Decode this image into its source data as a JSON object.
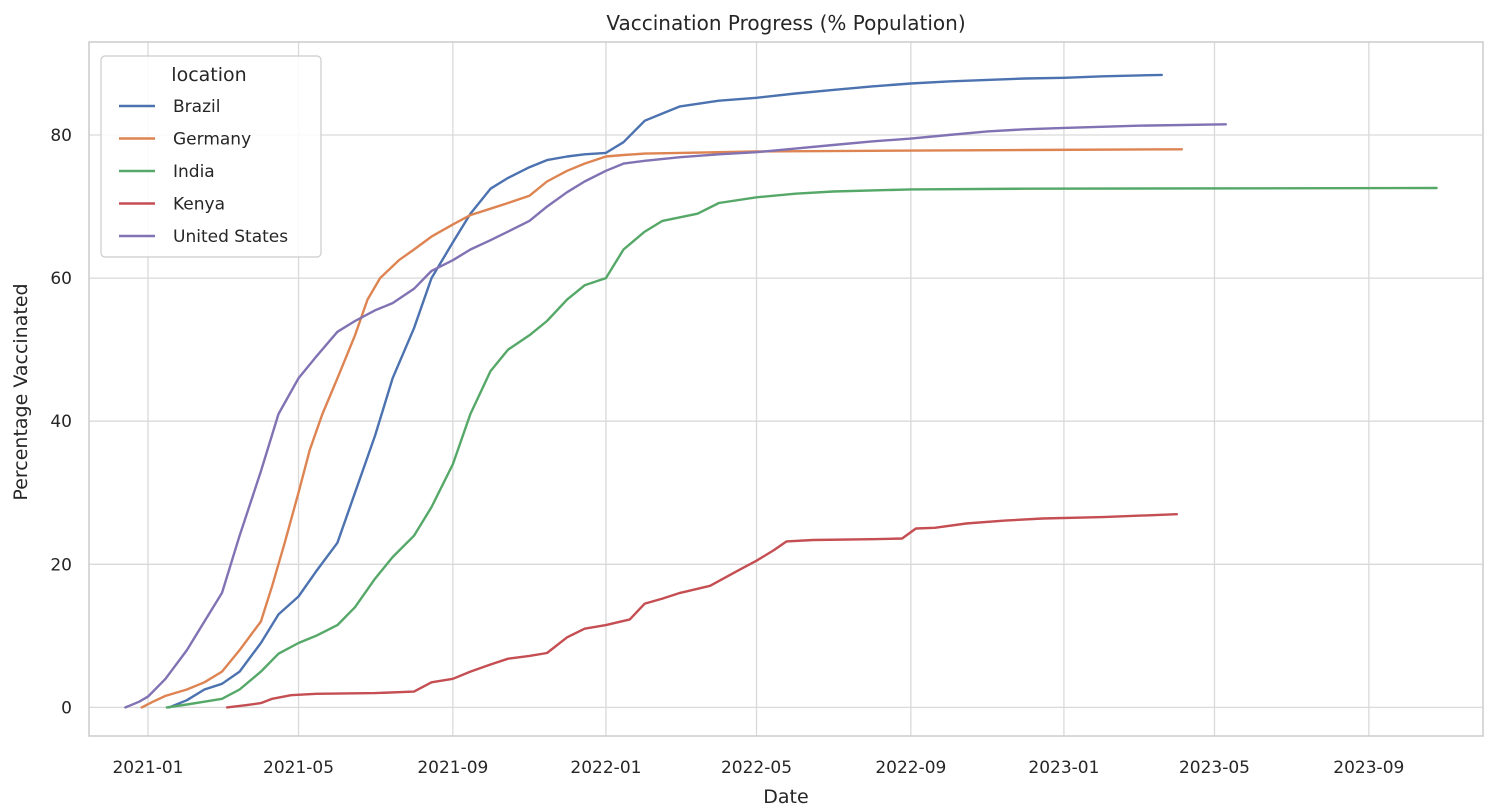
{
  "chart_data": {
    "type": "line",
    "title": "Vaccination Progress (% Population)",
    "xlabel": "Date",
    "ylabel": "Percentage Vaccinated",
    "x_ticks": [
      "2021-01",
      "2021-05",
      "2021-09",
      "2022-01",
      "2022-05",
      "2022-09",
      "2023-01",
      "2023-05",
      "2023-09"
    ],
    "y_ticks": [
      0,
      20,
      40,
      60,
      80
    ],
    "xlim": [
      "2020-11-15",
      "2023-12-01"
    ],
    "ylim": [
      -4,
      93
    ],
    "grid": true,
    "legend": {
      "title": "location",
      "placement": "top-left"
    },
    "series": [
      {
        "name": "Brazil",
        "color": "#4c72b0",
        "points": [
          [
            "2021-01-18",
            0
          ],
          [
            "2021-02-01",
            1
          ],
          [
            "2021-02-15",
            2.5
          ],
          [
            "2021-03-01",
            3.3
          ],
          [
            "2021-03-15",
            5
          ],
          [
            "2021-04-01",
            9
          ],
          [
            "2021-04-15",
            13
          ],
          [
            "2021-05-01",
            15.5
          ],
          [
            "2021-05-15",
            19
          ],
          [
            "2021-06-01",
            23
          ],
          [
            "2021-06-15",
            30
          ],
          [
            "2021-07-01",
            38
          ],
          [
            "2021-07-15",
            46
          ],
          [
            "2021-08-01",
            53
          ],
          [
            "2021-08-15",
            60
          ],
          [
            "2021-09-01",
            65
          ],
          [
            "2021-09-15",
            69
          ],
          [
            "2021-10-01",
            72.5
          ],
          [
            "2021-10-15",
            74
          ],
          [
            "2021-11-01",
            75.5
          ],
          [
            "2021-11-15",
            76.5
          ],
          [
            "2021-12-01",
            77
          ],
          [
            "2021-12-15",
            77.3
          ],
          [
            "2022-01-01",
            77.5
          ],
          [
            "2022-01-15",
            79
          ],
          [
            "2022-02-01",
            82
          ],
          [
            "2022-02-15",
            83
          ],
          [
            "2022-03-01",
            84
          ],
          [
            "2022-04-01",
            84.8
          ],
          [
            "2022-05-01",
            85.2
          ],
          [
            "2022-06-01",
            85.8
          ],
          [
            "2022-07-01",
            86.3
          ],
          [
            "2022-08-01",
            86.8
          ],
          [
            "2022-09-01",
            87.2
          ],
          [
            "2022-10-01",
            87.5
          ],
          [
            "2022-11-01",
            87.7
          ],
          [
            "2022-12-01",
            87.9
          ],
          [
            "2023-01-01",
            88
          ],
          [
            "2023-02-01",
            88.2
          ],
          [
            "2023-03-20",
            88.4
          ]
        ]
      },
      {
        "name": "Germany",
        "color": "#dd8452",
        "points": [
          [
            "2020-12-27",
            0
          ],
          [
            "2021-01-05",
            0.8
          ],
          [
            "2021-01-15",
            1.6
          ],
          [
            "2021-02-01",
            2.5
          ],
          [
            "2021-02-15",
            3.5
          ],
          [
            "2021-03-01",
            5
          ],
          [
            "2021-03-15",
            8
          ],
          [
            "2021-04-01",
            12
          ],
          [
            "2021-04-10",
            17
          ],
          [
            "2021-04-20",
            23
          ],
          [
            "2021-05-01",
            30
          ],
          [
            "2021-05-10",
            36
          ],
          [
            "2021-05-20",
            41
          ],
          [
            "2021-06-01",
            46
          ],
          [
            "2021-06-15",
            52
          ],
          [
            "2021-06-25",
            57
          ],
          [
            "2021-07-05",
            60
          ],
          [
            "2021-07-20",
            62.5
          ],
          [
            "2021-08-01",
            64
          ],
          [
            "2021-08-15",
            65.8
          ],
          [
            "2021-09-01",
            67.5
          ],
          [
            "2021-09-15",
            68.8
          ],
          [
            "2021-10-01",
            69.7
          ],
          [
            "2021-10-15",
            70.5
          ],
          [
            "2021-11-01",
            71.5
          ],
          [
            "2021-11-15",
            73.5
          ],
          [
            "2021-12-01",
            75
          ],
          [
            "2021-12-15",
            76
          ],
          [
            "2022-01-01",
            77
          ],
          [
            "2022-01-15",
            77.2
          ],
          [
            "2022-02-01",
            77.4
          ],
          [
            "2022-03-01",
            77.5
          ],
          [
            "2022-05-01",
            77.7
          ],
          [
            "2022-08-01",
            77.8
          ],
          [
            "2022-12-01",
            77.9
          ],
          [
            "2023-04-05",
            78
          ]
        ]
      },
      {
        "name": "India",
        "color": "#55a868",
        "points": [
          [
            "2021-01-16",
            0
          ],
          [
            "2021-02-01",
            0.4
          ],
          [
            "2021-02-15",
            0.8
          ],
          [
            "2021-03-01",
            1.2
          ],
          [
            "2021-03-15",
            2.5
          ],
          [
            "2021-04-01",
            5
          ],
          [
            "2021-04-15",
            7.5
          ],
          [
            "2021-05-01",
            9
          ],
          [
            "2021-05-15",
            10
          ],
          [
            "2021-06-01",
            11.5
          ],
          [
            "2021-06-15",
            14
          ],
          [
            "2021-07-01",
            18
          ],
          [
            "2021-07-15",
            21
          ],
          [
            "2021-08-01",
            24
          ],
          [
            "2021-08-15",
            28
          ],
          [
            "2021-09-01",
            34
          ],
          [
            "2021-09-15",
            41
          ],
          [
            "2021-10-01",
            47
          ],
          [
            "2021-10-15",
            50
          ],
          [
            "2021-11-01",
            52
          ],
          [
            "2021-11-15",
            54
          ],
          [
            "2021-12-01",
            57
          ],
          [
            "2021-12-15",
            59
          ],
          [
            "2022-01-01",
            60
          ],
          [
            "2022-01-15",
            64
          ],
          [
            "2022-02-01",
            66.5
          ],
          [
            "2022-02-15",
            68
          ],
          [
            "2022-03-15",
            69
          ],
          [
            "2022-04-01",
            70.5
          ],
          [
            "2022-05-01",
            71.3
          ],
          [
            "2022-06-01",
            71.8
          ],
          [
            "2022-07-01",
            72.1
          ],
          [
            "2022-09-01",
            72.4
          ],
          [
            "2022-12-01",
            72.5
          ],
          [
            "2023-10-25",
            72.6
          ]
        ]
      },
      {
        "name": "Kenya",
        "color": "#c44e52",
        "points": [
          [
            "2021-03-05",
            0
          ],
          [
            "2021-03-20",
            0.3
          ],
          [
            "2021-04-01",
            0.6
          ],
          [
            "2021-04-10",
            1.2
          ],
          [
            "2021-04-25",
            1.7
          ],
          [
            "2021-05-15",
            1.9
          ],
          [
            "2021-07-01",
            2
          ],
          [
            "2021-08-01",
            2.2
          ],
          [
            "2021-08-15",
            3.5
          ],
          [
            "2021-09-01",
            4
          ],
          [
            "2021-09-15",
            5
          ],
          [
            "2021-10-01",
            6
          ],
          [
            "2021-10-15",
            6.8
          ],
          [
            "2021-11-01",
            7.2
          ],
          [
            "2021-11-15",
            7.6
          ],
          [
            "2021-12-01",
            9.8
          ],
          [
            "2021-12-15",
            11
          ],
          [
            "2022-01-01",
            11.5
          ],
          [
            "2022-01-20",
            12.3
          ],
          [
            "2022-02-01",
            14.5
          ],
          [
            "2022-02-15",
            15.2
          ],
          [
            "2022-03-01",
            16
          ],
          [
            "2022-03-25",
            17
          ],
          [
            "2022-04-15",
            19
          ],
          [
            "2022-05-01",
            20.5
          ],
          [
            "2022-05-15",
            22
          ],
          [
            "2022-05-25",
            23.2
          ],
          [
            "2022-06-15",
            23.4
          ],
          [
            "2022-08-01",
            23.5
          ],
          [
            "2022-08-25",
            23.6
          ],
          [
            "2022-09-05",
            25
          ],
          [
            "2022-09-20",
            25.1
          ],
          [
            "2022-10-15",
            25.7
          ],
          [
            "2022-11-15",
            26.1
          ],
          [
            "2022-12-15",
            26.4
          ],
          [
            "2023-02-01",
            26.6
          ],
          [
            "2023-04-01",
            27
          ]
        ]
      },
      {
        "name": "United States",
        "color": "#8172b3",
        "points": [
          [
            "2020-12-14",
            0
          ],
          [
            "2020-12-25",
            0.8
          ],
          [
            "2021-01-01",
            1.5
          ],
          [
            "2021-01-15",
            4
          ],
          [
            "2021-02-01",
            8
          ],
          [
            "2021-02-15",
            12
          ],
          [
            "2021-03-01",
            16
          ],
          [
            "2021-03-15",
            24
          ],
          [
            "2021-04-01",
            33
          ],
          [
            "2021-04-15",
            41
          ],
          [
            "2021-05-01",
            46
          ],
          [
            "2021-05-15",
            49
          ],
          [
            "2021-06-01",
            52.5
          ],
          [
            "2021-06-15",
            54
          ],
          [
            "2021-07-01",
            55.5
          ],
          [
            "2021-07-15",
            56.5
          ],
          [
            "2021-08-01",
            58.5
          ],
          [
            "2021-08-15",
            61
          ],
          [
            "2021-09-01",
            62.5
          ],
          [
            "2021-09-15",
            64
          ],
          [
            "2021-10-01",
            65.3
          ],
          [
            "2021-10-15",
            66.5
          ],
          [
            "2021-11-01",
            68
          ],
          [
            "2021-11-15",
            70
          ],
          [
            "2021-12-01",
            72
          ],
          [
            "2021-12-15",
            73.5
          ],
          [
            "2022-01-01",
            75
          ],
          [
            "2022-01-15",
            76
          ],
          [
            "2022-02-01",
            76.4
          ],
          [
            "2022-03-01",
            76.9
          ],
          [
            "2022-04-01",
            77.3
          ],
          [
            "2022-05-01",
            77.6
          ],
          [
            "2022-06-01",
            78.1
          ],
          [
            "2022-07-01",
            78.6
          ],
          [
            "2022-08-01",
            79.1
          ],
          [
            "2022-09-01",
            79.5
          ],
          [
            "2022-10-01",
            80
          ],
          [
            "2022-11-01",
            80.5
          ],
          [
            "2022-12-01",
            80.8
          ],
          [
            "2023-01-01",
            81
          ],
          [
            "2023-03-01",
            81.3
          ],
          [
            "2023-05-10",
            81.5
          ]
        ]
      }
    ]
  }
}
